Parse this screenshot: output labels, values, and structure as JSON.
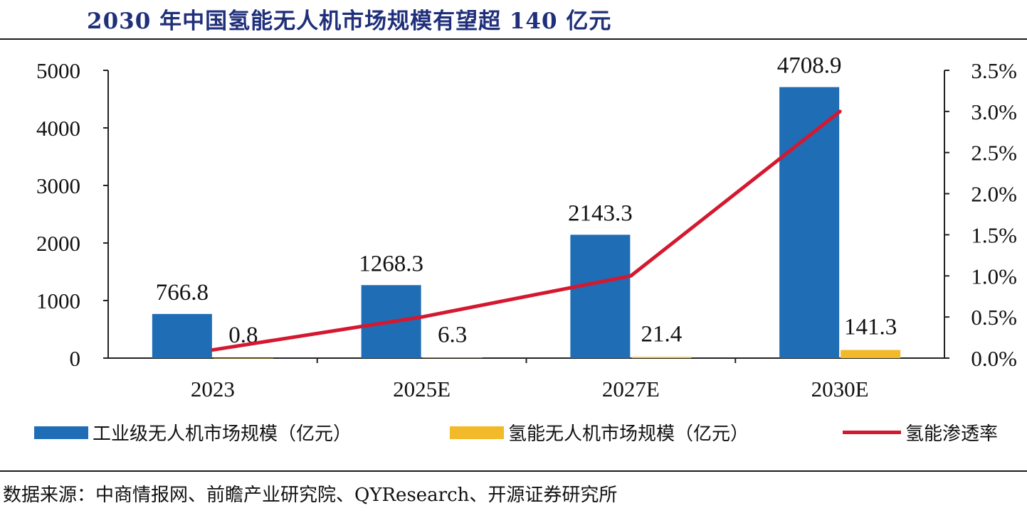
{
  "title": "2030 年中国氢能无人机市场规模有望超 140 亿元",
  "source": "数据来源：中商情报网、前瞻产业研究院、QYResearch、开源证券研究所",
  "colors": {
    "title": "#1f2f7a",
    "industrial_bar": "#1f6db5",
    "hydrogen_bar": "#f2b929",
    "penetration_line": "#d4182f",
    "axis": "#222222"
  },
  "chart_data": {
    "type": "bar",
    "categories": [
      "2023",
      "2025E",
      "2027E",
      "2030E"
    ],
    "series": [
      {
        "name": "工业级无人机市场规模（亿元）",
        "type": "bar",
        "axis": "left",
        "values": [
          766.8,
          1268.3,
          2143.3,
          4708.9
        ],
        "labels": [
          "766.8",
          "1268.3",
          "2143.3",
          "4708.9"
        ]
      },
      {
        "name": "氢能无人机市场规模（亿元）",
        "type": "bar",
        "axis": "left",
        "values": [
          0.8,
          6.3,
          21.4,
          141.3
        ],
        "labels": [
          "0.8",
          "6.3",
          "21.4",
          "141.3"
        ]
      },
      {
        "name": "氢能渗透率",
        "type": "line",
        "axis": "right",
        "values": [
          0.1,
          0.5,
          1.0,
          3.0
        ]
      }
    ],
    "y_left": {
      "lim": [
        0,
        5000
      ],
      "ticks": [
        "0",
        "1000",
        "2000",
        "3000",
        "4000",
        "5000"
      ]
    },
    "y_right": {
      "lim": [
        0,
        3.5
      ],
      "ticks": [
        "0.0%",
        "0.5%",
        "1.0%",
        "1.5%",
        "2.0%",
        "2.5%",
        "3.0%",
        "3.5%"
      ]
    },
    "legend_position": "bottom",
    "grid": false
  }
}
